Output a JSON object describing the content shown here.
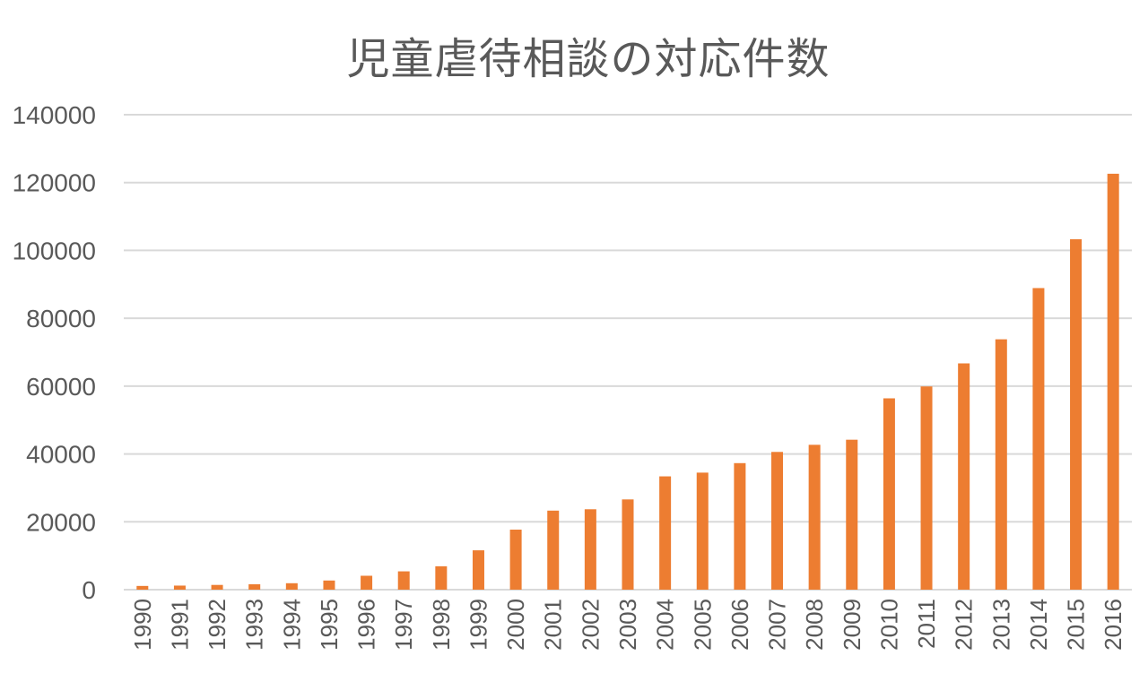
{
  "chart_data": {
    "type": "bar",
    "title": "児童虐待相談の対応件数",
    "xlabel": "",
    "ylabel": "",
    "categories": [
      "1990",
      "1991",
      "1992",
      "1993",
      "1994",
      "1995",
      "1996",
      "1997",
      "1998",
      "1999",
      "2000",
      "2001",
      "2002",
      "2003",
      "2004",
      "2005",
      "2006",
      "2007",
      "2008",
      "2009",
      "2010",
      "2011",
      "2012",
      "2013",
      "2014",
      "2015",
      "2016"
    ],
    "values": [
      1100,
      1200,
      1400,
      1600,
      1900,
      2700,
      4100,
      5400,
      6900,
      11600,
      17700,
      23300,
      23700,
      26600,
      33400,
      34500,
      37300,
      40600,
      42700,
      44200,
      56400,
      59900,
      66700,
      73800,
      88900,
      103300,
      122600
    ],
    "ylim": [
      0,
      140000
    ],
    "yticks": [
      "0",
      "20000",
      "40000",
      "60000",
      "80000",
      "100000",
      "120000",
      "140000"
    ],
    "grid": true,
    "bar_color": "#ED7D31",
    "grid_color": "#D9D9D9",
    "text_color": "#595959"
  }
}
